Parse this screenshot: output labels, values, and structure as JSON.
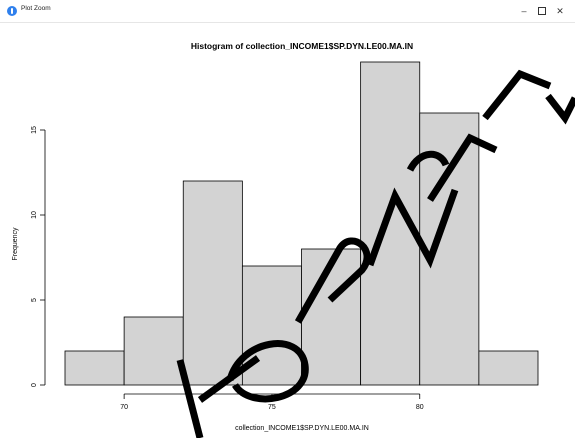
{
  "window": {
    "title": "Plot Zoom",
    "minimize_icon": "minimize-icon",
    "maximize_icon": "maximize-icon",
    "close_icon": "close-icon"
  },
  "chart_data": {
    "type": "bar",
    "title": "Histogram of collection_INCOME1$SP.DYN.LE00.MA.IN",
    "xlabel": "collection_INCOME1$SP.DYN.LE00.MA.IN",
    "ylabel": "Frequency",
    "bins": [
      {
        "start": 68,
        "end": 70,
        "count": 2
      },
      {
        "start": 70,
        "end": 72,
        "count": 4
      },
      {
        "start": 72,
        "end": 74,
        "count": 12
      },
      {
        "start": 74,
        "end": 76,
        "count": 7
      },
      {
        "start": 76,
        "end": 78,
        "count": 8
      },
      {
        "start": 78,
        "end": 80,
        "count": 19
      },
      {
        "start": 80,
        "end": 82,
        "count": 16
      },
      {
        "start": 82,
        "end": 84,
        "count": 2
      }
    ],
    "xticks": [
      70,
      75,
      80
    ],
    "xtick_labels": [
      "70",
      "75",
      "80"
    ],
    "yticks": [
      0,
      5,
      10,
      15
    ],
    "ytick_labels": [
      "0",
      "5",
      "10",
      "15"
    ],
    "xlim": [
      68,
      84
    ],
    "ylim": [
      0,
      19
    ],
    "bar_color": "#d3d3d3",
    "edge_color": "#000000",
    "grid": false,
    "legend": false
  }
}
